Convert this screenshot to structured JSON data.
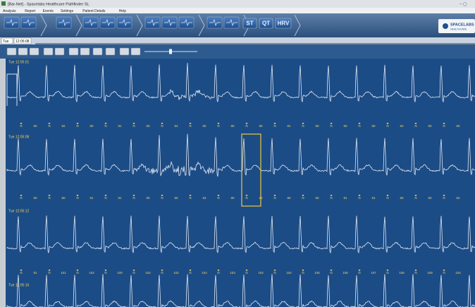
{
  "window": {
    "title": "[Bar-Net] - Spacelabs Healthcare Pathfinder SL"
  },
  "menu": [
    "Analysis",
    "Report",
    "Events",
    "Settings",
    "Patient Details",
    "Help"
  ],
  "toolbar": {
    "buttons": [
      "ST",
      "QT",
      "HRV"
    ],
    "logo": "SPACELABS",
    "logo_sub": "HEALTHCARE"
  },
  "controls": {
    "day": "Tue",
    "time": "12:05:08"
  },
  "strips": [
    {
      "time": "Tue 12:05:01",
      "beats": [
        "N",
        "N",
        "N",
        "N",
        "N",
        "N",
        "N",
        "N",
        "N",
        "N",
        "N",
        "N",
        "N",
        "N",
        "N",
        "N"
      ],
      "rates": [
        80,
        82,
        80,
        81,
        80,
        84,
        80,
        80,
        80,
        81,
        80,
        80,
        80,
        82,
        80,
        80
      ]
    },
    {
      "time": "Tue 12:05:08",
      "beats": [
        "N",
        "N",
        "N",
        "N",
        "N",
        "N",
        "N",
        "N",
        "N",
        "N",
        "N",
        "N",
        "N",
        "N",
        "N",
        "N"
      ],
      "rates": [
        80,
        80,
        81,
        81,
        80,
        80,
        84,
        80,
        80,
        80,
        80,
        81,
        81,
        80,
        80,
        82
      ]
    },
    {
      "time": "Tue 12:05:12",
      "beats": [
        "N",
        "N",
        "N",
        "N",
        "N",
        "N",
        "N",
        "N",
        "N",
        "N",
        "N",
        "N",
        "N",
        "N",
        "N",
        "N"
      ],
      "rates": [
        81,
        101,
        102,
        100,
        102,
        102,
        104,
        103,
        104,
        104,
        105,
        106,
        107,
        106,
        108,
        104
      ]
    },
    {
      "time": "Tue 12:05:16"
    }
  ]
}
